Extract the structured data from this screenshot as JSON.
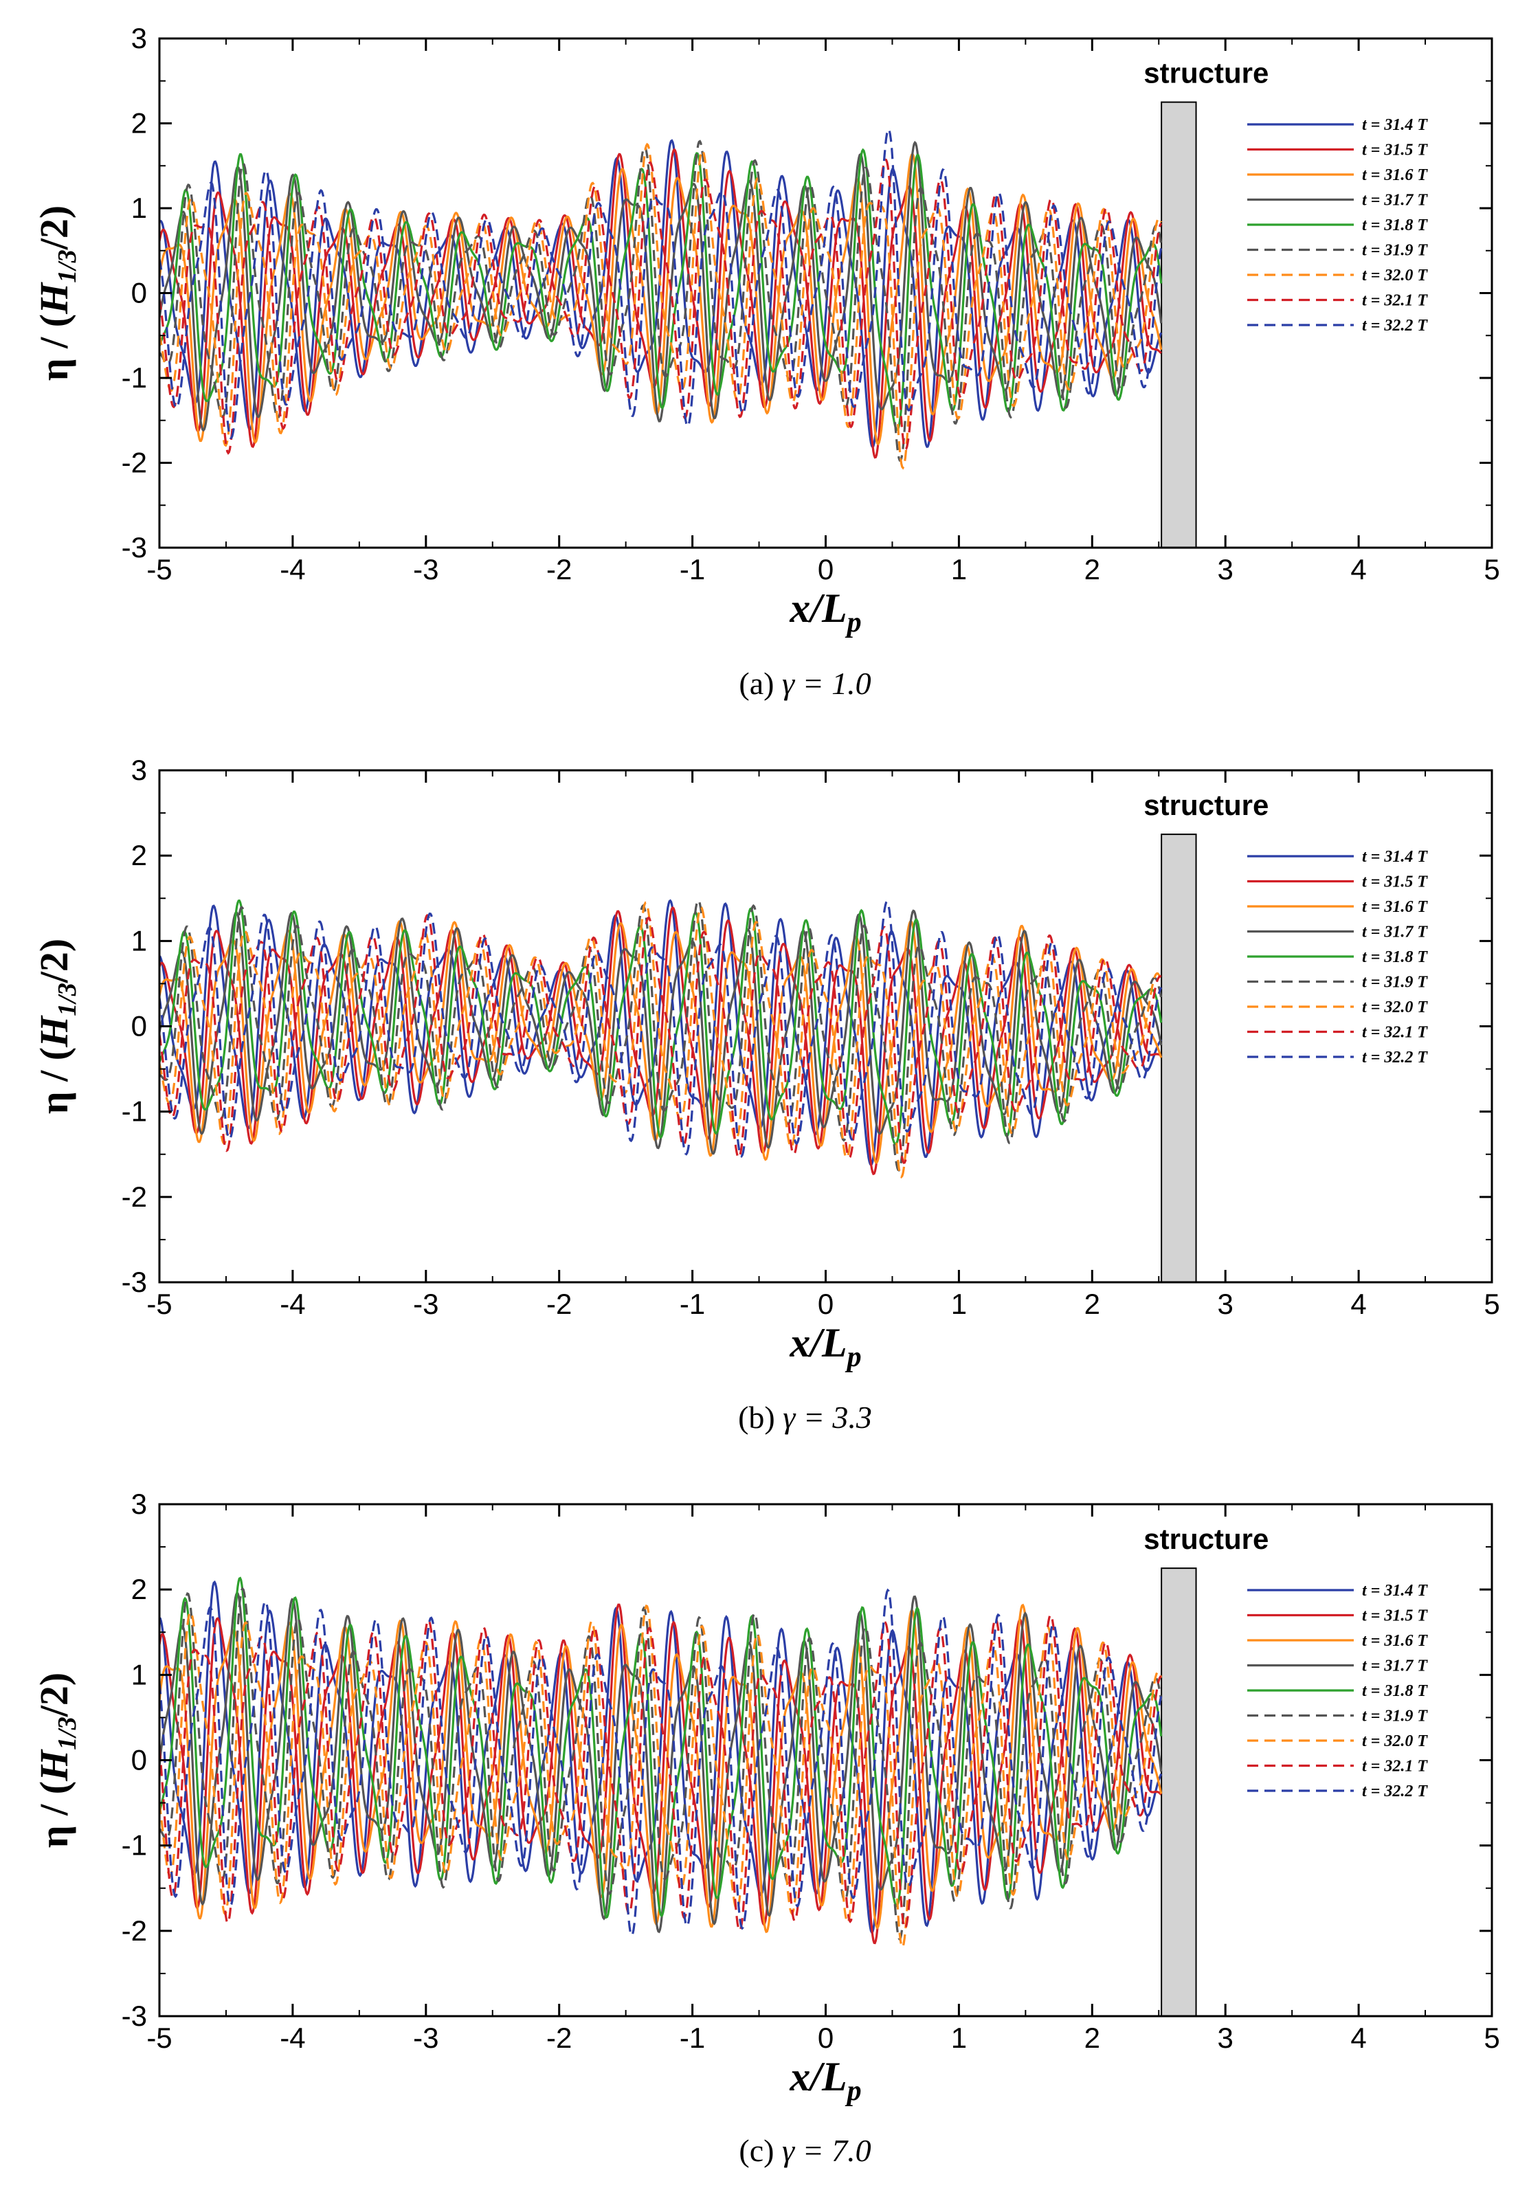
{
  "chart_data": [
    {
      "type": "line",
      "panel": "(a)",
      "caption_prefix": "(a)",
      "caption_gamma": "γ = 1.0",
      "gamma": 1.0,
      "xlabel": "x/Lp",
      "ylabel": "η / (H1/3/2)",
      "xlim": [
        -5,
        5
      ],
      "ylim": [
        -3,
        3
      ],
      "xticks": [
        "-5",
        "-4",
        "-3",
        "-2",
        "-1",
        "0",
        "1",
        "2",
        "3",
        "4",
        "5"
      ],
      "yticks": [
        "3",
        "2",
        "1",
        "0",
        "-1",
        "-2",
        "-3"
      ],
      "structure": {
        "label": "structure",
        "x_range": [
          2.52,
          2.78
        ],
        "top": 2.25
      },
      "legend_position": "top-right",
      "series": [
        {
          "name": "t = 31.4 T",
          "color": "#2b3ea6",
          "style": "solid"
        },
        {
          "name": "t = 31.5 T",
          "color": "#d21f26",
          "style": "solid"
        },
        {
          "name": "t = 31.6 T",
          "color": "#ff8c1a",
          "style": "solid"
        },
        {
          "name": "t = 31.7 T",
          "color": "#555555",
          "style": "solid"
        },
        {
          "name": "t = 31.8 T",
          "color": "#2ea12e",
          "style": "solid"
        },
        {
          "name": "t = 31.9 T",
          "color": "#555555",
          "style": "dashed"
        },
        {
          "name": "t = 32.0 T",
          "color": "#ff8c1a",
          "style": "dashed"
        },
        {
          "name": "t = 32.1 T",
          "color": "#d21f26",
          "style": "dashed"
        },
        {
          "name": "t = 32.2 T",
          "color": "#2b3ea6",
          "style": "dashed"
        }
      ],
      "envelope": [
        {
          "x": -5.0,
          "amp": 1.0
        },
        {
          "x": -4.6,
          "amp": 1.8
        },
        {
          "x": -4.2,
          "amp": 1.7
        },
        {
          "x": -3.5,
          "amp": 1.0
        },
        {
          "x": -3.0,
          "amp": 0.9
        },
        {
          "x": -2.0,
          "amp": 0.7
        },
        {
          "x": -1.5,
          "amp": 1.6
        },
        {
          "x": -1.0,
          "amp": 1.7
        },
        {
          "x": -0.5,
          "amp": 1.5
        },
        {
          "x": 0.0,
          "amp": 1.3
        },
        {
          "x": 0.5,
          "amp": 2.1
        },
        {
          "x": 1.0,
          "amp": 1.4
        },
        {
          "x": 1.5,
          "amp": 1.3
        },
        {
          "x": 2.0,
          "amp": 1.2
        },
        {
          "x": 2.5,
          "amp": 1.0
        }
      ]
    },
    {
      "type": "line",
      "panel": "(b)",
      "caption_prefix": "(b)",
      "caption_gamma": "γ = 3.3",
      "gamma": 3.3,
      "xlabel": "x/Lp",
      "ylabel": "η / (H1/3/2)",
      "xlim": [
        -5,
        5
      ],
      "ylim": [
        -3,
        3
      ],
      "xticks": [
        "-5",
        "-4",
        "-3",
        "-2",
        "-1",
        "0",
        "1",
        "2",
        "3",
        "4",
        "5"
      ],
      "yticks": [
        "3",
        "2",
        "1",
        "0",
        "-1",
        "-2",
        "-3"
      ],
      "structure": {
        "label": "structure",
        "x_range": [
          2.52,
          2.78
        ],
        "top": 2.25
      },
      "legend_position": "top-right",
      "series": [
        {
          "name": "t = 31.4 T",
          "color": "#2b3ea6",
          "style": "solid"
        },
        {
          "name": "t = 31.5 T",
          "color": "#d21f26",
          "style": "solid"
        },
        {
          "name": "t = 31.6 T",
          "color": "#ff8c1a",
          "style": "solid"
        },
        {
          "name": "t = 31.7 T",
          "color": "#555555",
          "style": "solid"
        },
        {
          "name": "t = 31.8 T",
          "color": "#2ea12e",
          "style": "solid"
        },
        {
          "name": "t = 31.9 T",
          "color": "#555555",
          "style": "dashed"
        },
        {
          "name": "t = 32.0 T",
          "color": "#ff8c1a",
          "style": "dashed"
        },
        {
          "name": "t = 32.1 T",
          "color": "#d21f26",
          "style": "dashed"
        },
        {
          "name": "t = 32.2 T",
          "color": "#2b3ea6",
          "style": "dashed"
        }
      ],
      "envelope": [
        {
          "x": -5.0,
          "amp": 0.9
        },
        {
          "x": -4.6,
          "amp": 1.5
        },
        {
          "x": -4.2,
          "amp": 1.4
        },
        {
          "x": -3.5,
          "amp": 1.0
        },
        {
          "x": -3.0,
          "amp": 1.2
        },
        {
          "x": -2.0,
          "amp": 0.6
        },
        {
          "x": -1.5,
          "amp": 1.4
        },
        {
          "x": -1.0,
          "amp": 1.5
        },
        {
          "x": -0.5,
          "amp": 1.5
        },
        {
          "x": 0.0,
          "amp": 1.3
        },
        {
          "x": 0.5,
          "amp": 1.7
        },
        {
          "x": 1.0,
          "amp": 1.1
        },
        {
          "x": 1.5,
          "amp": 1.3
        },
        {
          "x": 2.0,
          "amp": 0.9
        },
        {
          "x": 2.5,
          "amp": 0.6
        }
      ]
    },
    {
      "type": "line",
      "panel": "(c)",
      "caption_prefix": "(c)",
      "caption_gamma": "γ = 7.0",
      "gamma": 7.0,
      "xlabel": "x/Lp",
      "ylabel": "η / (H1/3/2)",
      "xlim": [
        -5,
        5
      ],
      "ylim": [
        -3,
        3
      ],
      "xticks": [
        "-5",
        "-4",
        "-3",
        "-2",
        "-1",
        "0",
        "1",
        "2",
        "3",
        "4",
        "5"
      ],
      "yticks": [
        "3",
        "2",
        "1",
        "0",
        "-1",
        "-2",
        "-3"
      ],
      "structure": {
        "label": "structure",
        "x_range": [
          2.52,
          2.78
        ],
        "top": 2.25
      },
      "legend_position": "top-right",
      "series": [
        {
          "name": "t = 31.4 T",
          "color": "#2b3ea6",
          "style": "solid"
        },
        {
          "name": "t = 31.5 T",
          "color": "#d21f26",
          "style": "solid"
        },
        {
          "name": "t = 31.6 T",
          "color": "#ff8c1a",
          "style": "solid"
        },
        {
          "name": "t = 31.7 T",
          "color": "#555555",
          "style": "solid"
        },
        {
          "name": "t = 31.8 T",
          "color": "#2ea12e",
          "style": "solid"
        },
        {
          "name": "t = 31.9 T",
          "color": "#555555",
          "style": "dashed"
        },
        {
          "name": "t = 32.0 T",
          "color": "#ff8c1a",
          "style": "dashed"
        },
        {
          "name": "t = 32.1 T",
          "color": "#d21f26",
          "style": "dashed"
        },
        {
          "name": "t = 32.2 T",
          "color": "#2b3ea6",
          "style": "dashed"
        }
      ],
      "envelope": [
        {
          "x": -5.0,
          "amp": 1.6
        },
        {
          "x": -4.6,
          "amp": 2.1
        },
        {
          "x": -4.2,
          "amp": 1.9
        },
        {
          "x": -3.5,
          "amp": 1.5
        },
        {
          "x": -3.0,
          "amp": 1.6
        },
        {
          "x": -2.0,
          "amp": 1.4
        },
        {
          "x": -1.5,
          "amp": 2.0
        },
        {
          "x": -1.0,
          "amp": 1.8
        },
        {
          "x": -0.5,
          "amp": 1.9
        },
        {
          "x": 0.0,
          "amp": 1.6
        },
        {
          "x": 0.5,
          "amp": 2.2
        },
        {
          "x": 1.0,
          "amp": 1.6
        },
        {
          "x": 1.5,
          "amp": 1.8
        },
        {
          "x": 2.0,
          "amp": 1.4
        },
        {
          "x": 2.5,
          "amp": 0.9
        }
      ]
    }
  ]
}
